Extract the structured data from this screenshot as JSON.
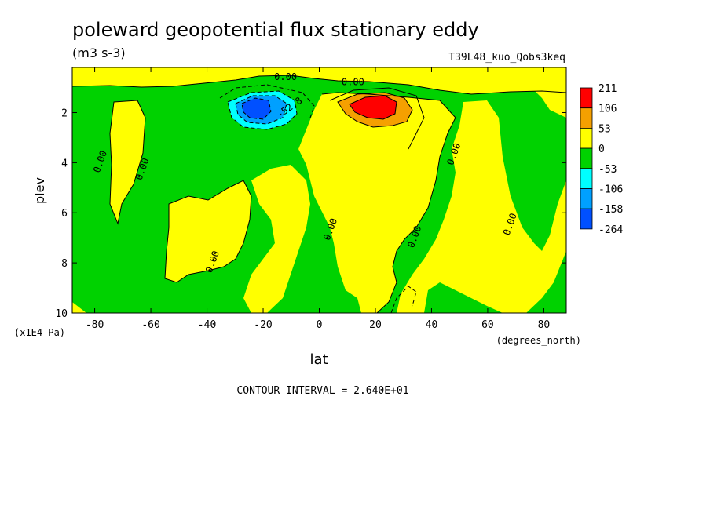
{
  "chart_data": {
    "type": "heatmap",
    "title": "poleward geopotential flux stationary eddy",
    "units": "(m3 s-3)",
    "run_label": "T39L48_kuo_Qobs3keq",
    "xlabel": "lat",
    "x_units": "(degrees_north)",
    "ylabel": "plev",
    "y_units": "(x1E4 Pa)",
    "xlim": [
      -88,
      88
    ],
    "ylim": [
      10,
      0.2
    ],
    "x_ticks": [
      -80,
      -60,
      -40,
      -20,
      0,
      20,
      40,
      60,
      80
    ],
    "y_ticks": [
      2,
      4,
      6,
      8,
      10
    ],
    "contour_interval_text": "CONTOUR INTERVAL = 2.640E+01",
    "colorbar": {
      "levels": [
        "211",
        "106",
        "53",
        "0",
        "-53",
        "-106",
        "-158",
        "-264"
      ],
      "colors": [
        "#ff0000",
        "#f5a000",
        "#ffff00",
        "#00d200",
        "#00ffff",
        "#00a0ff",
        "#0050ff"
      ]
    },
    "contour_labels": [
      {
        "text": "0.00",
        "lat": -12,
        "plev": 0.7
      },
      {
        "text": "0.00",
        "lat": 12,
        "plev": 0.9
      },
      {
        "text": "-52.8",
        "lat": -10,
        "plev": 1.9
      },
      {
        "text": "0.00",
        "lat": -77,
        "plev": 4.0
      },
      {
        "text": "0.00",
        "lat": -62,
        "plev": 4.3
      },
      {
        "text": "0.00",
        "lat": -37,
        "plev": 8.0
      },
      {
        "text": "0.00",
        "lat": 5,
        "plev": 6.7
      },
      {
        "text": "0.00",
        "lat": 35,
        "plev": 7.0
      },
      {
        "text": "0.00",
        "lat": 49,
        "plev": 3.7
      },
      {
        "text": "0.00",
        "lat": 69,
        "plev": 6.5
      }
    ],
    "extrema": [
      {
        "sign": "max",
        "lat": 20,
        "plev": 1.7,
        "approx_value": 211
      },
      {
        "sign": "min",
        "lat": -23,
        "plev": 1.8,
        "approx_value": -264
      }
    ]
  }
}
